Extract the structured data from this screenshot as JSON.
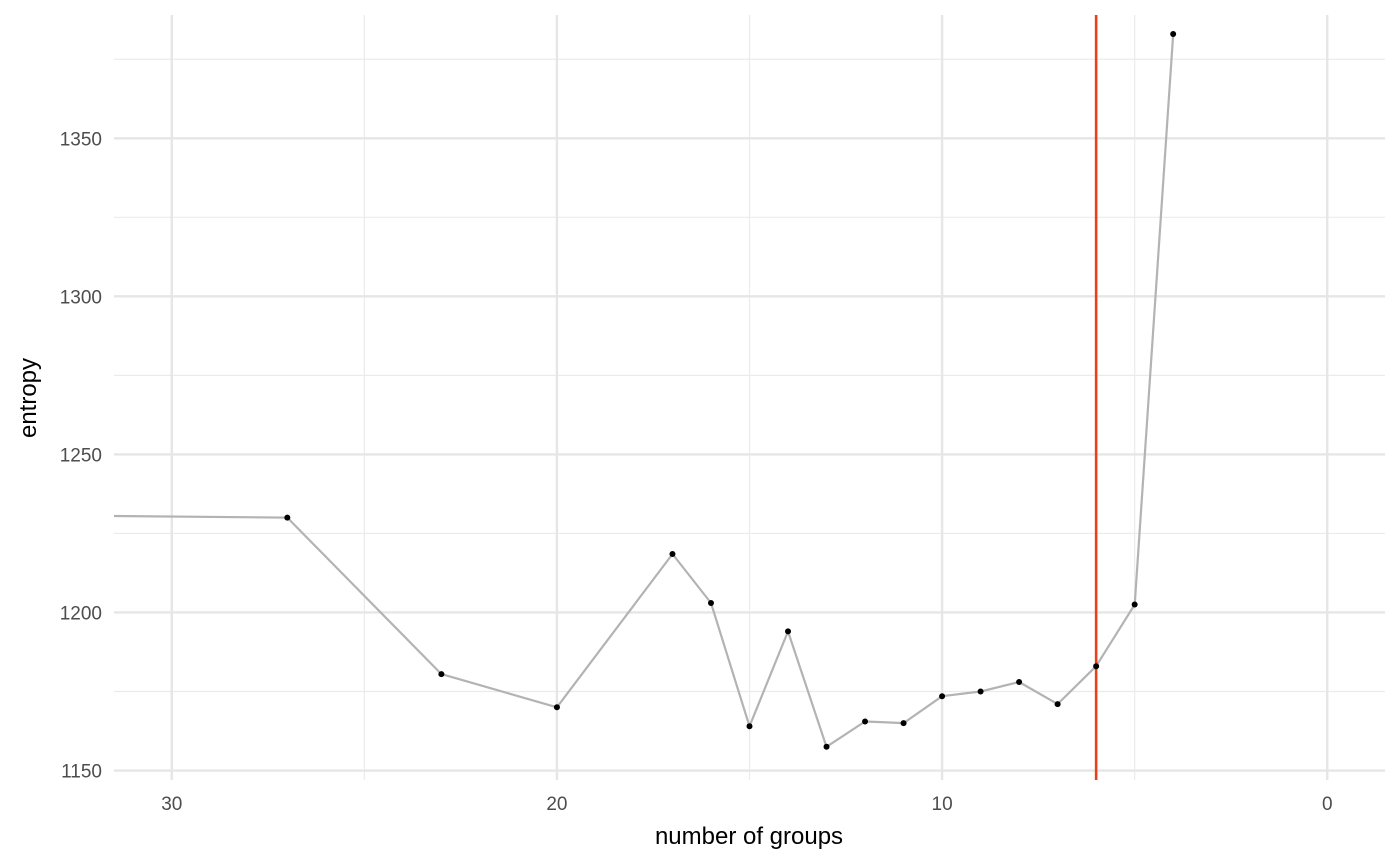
{
  "chart_data": {
    "type": "line",
    "title": "",
    "xlabel": "number of groups",
    "ylabel": "entropy",
    "x_reversed": true,
    "xlim": [
      31.5,
      -1.5
    ],
    "ylim": [
      1147,
      1389
    ],
    "x_ticks": [
      30,
      20,
      10,
      0
    ],
    "x_tick_labels": [
      "30",
      "20",
      "10",
      "0"
    ],
    "x_minor_ticks": [
      25,
      15,
      5
    ],
    "y_ticks": [
      1150,
      1200,
      1250,
      1300,
      1350
    ],
    "y_tick_labels": [
      "1150",
      "1200",
      "1250",
      "1300",
      "1350"
    ],
    "y_minor_ticks": [
      1175,
      1225,
      1275,
      1325,
      1375
    ],
    "grid": true,
    "line_color": "#b3b3b3",
    "point_color": "#000000",
    "vline": {
      "x": 6,
      "color": "#e8401c"
    },
    "line_start": {
      "x": 31.5,
      "y": 1230.5
    },
    "series": [
      {
        "x": [
          27,
          23,
          20,
          17,
          16,
          15,
          14,
          13,
          12,
          11,
          10,
          9,
          8,
          7,
          6,
          5,
          4
        ],
        "values": [
          1230,
          1180.5,
          1170,
          1218.5,
          1203,
          1164,
          1194,
          1157.5,
          1165.5,
          1165,
          1173.5,
          1175,
          1178,
          1171,
          1183,
          1202.5,
          1383
        ]
      }
    ]
  }
}
